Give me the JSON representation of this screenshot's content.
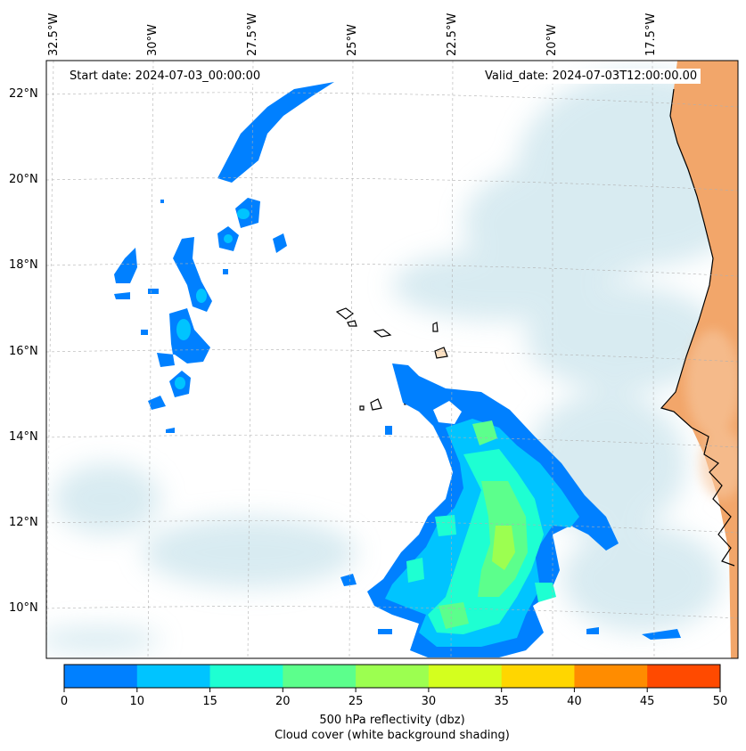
{
  "map": {
    "longitude_labels": [
      "32.5°W",
      "30°W",
      "27.5°W",
      "25°W",
      "22.5°W",
      "20°W",
      "17.5°W"
    ],
    "latitude_labels": [
      "22°N",
      "20°N",
      "18°N",
      "16°N",
      "14°N",
      "12°N",
      "10°N"
    ],
    "start_date": "Start date: 2024-07-03_00:00:00",
    "valid_date": "Valid_date: 2024-07-03T12:00:00.00",
    "land_color": "#f2a66a",
    "cloud_color": "#b9dbe6",
    "coastline_color": "#000000"
  },
  "colorbar": {
    "ticks": [
      "0",
      "5",
      "10",
      "15",
      "20",
      "25",
      "30",
      "35",
      "40",
      "45",
      "50"
    ],
    "colors": [
      "#0080ff",
      "#00c4ff",
      "#1effd2",
      "#5cff8c",
      "#9cff50",
      "#d4ff1e",
      "#ffd600",
      "#ff8c00",
      "#ff4a00"
    ],
    "label_line1": "500 hPa reflectivity (dbz)",
    "label_line2": "Cloud cover (white background shading)"
  }
}
